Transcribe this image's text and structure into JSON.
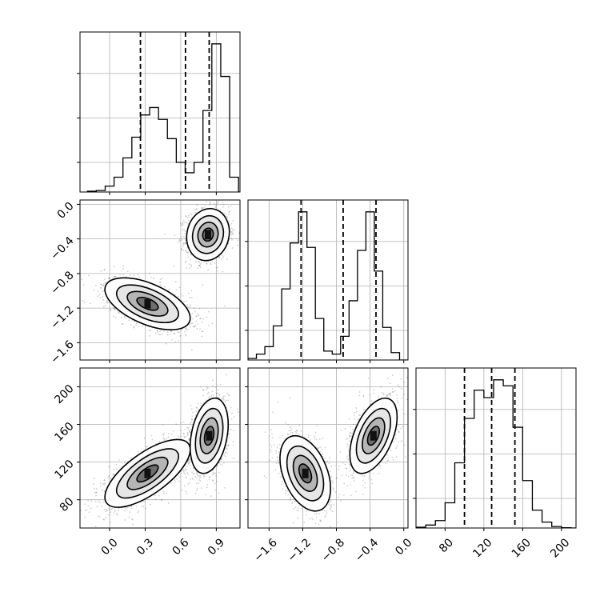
{
  "chart_data": {
    "type": "corner",
    "grid": true,
    "panels": [
      {
        "id": "hist-0",
        "type": "histogram",
        "row": 0,
        "col": 0,
        "xlim": [
          -0.25,
          1.1
        ],
        "x_ticks": [
          0.0,
          0.3,
          0.6,
          0.9
        ],
        "bins": [
          {
            "x": -0.15,
            "y": 0.005
          },
          {
            "x": -0.075,
            "y": 0.01
          },
          {
            "x": 0.0,
            "y": 0.04
          },
          {
            "x": 0.075,
            "y": 0.1
          },
          {
            "x": 0.15,
            "y": 0.23
          },
          {
            "x": 0.225,
            "y": 0.37
          },
          {
            "x": 0.3,
            "y": 0.52
          },
          {
            "x": 0.375,
            "y": 0.57
          },
          {
            "x": 0.45,
            "y": 0.49
          },
          {
            "x": 0.525,
            "y": 0.36
          },
          {
            "x": 0.6,
            "y": 0.2
          },
          {
            "x": 0.675,
            "y": 0.13
          },
          {
            "x": 0.75,
            "y": 0.2
          },
          {
            "x": 0.825,
            "y": 0.55
          },
          {
            "x": 0.9,
            "y": 1.0
          },
          {
            "x": 0.975,
            "y": 0.78
          },
          {
            "x": 1.05,
            "y": 0.1
          }
        ],
        "quantiles": [
          0.26,
          0.64,
          0.84
        ]
      },
      {
        "id": "hist-1",
        "type": "histogram",
        "row": 1,
        "col": 1,
        "xlim": [
          -1.85,
          0.05
        ],
        "x_ticks": [
          -1.6,
          -1.2,
          -0.8,
          -0.4,
          0.0
        ],
        "bins": [
          {
            "x": -1.8,
            "y": 0.01
          },
          {
            "x": -1.7,
            "y": 0.04
          },
          {
            "x": -1.6,
            "y": 0.09
          },
          {
            "x": -1.5,
            "y": 0.23
          },
          {
            "x": -1.4,
            "y": 0.48
          },
          {
            "x": -1.3,
            "y": 0.79
          },
          {
            "x": -1.2,
            "y": 1.0
          },
          {
            "x": -1.1,
            "y": 0.76
          },
          {
            "x": -1.0,
            "y": 0.28
          },
          {
            "x": -0.9,
            "y": 0.06
          },
          {
            "x": -0.8,
            "y": 0.04
          },
          {
            "x": -0.7,
            "y": 0.16
          },
          {
            "x": -0.6,
            "y": 0.4
          },
          {
            "x": -0.5,
            "y": 0.74
          },
          {
            "x": -0.4,
            "y": 1.0
          },
          {
            "x": -0.3,
            "y": 0.6
          },
          {
            "x": -0.2,
            "y": 0.22
          },
          {
            "x": -0.1,
            "y": 0.05
          }
        ],
        "quantiles": [
          -1.22,
          -0.72,
          -0.33
        ]
      },
      {
        "id": "hist-2",
        "type": "histogram",
        "row": 2,
        "col": 2,
        "xlim": [
          50,
          215
        ],
        "x_ticks": [
          80,
          120,
          160,
          200
        ],
        "bins": [
          {
            "x": 55,
            "y": 0.005
          },
          {
            "x": 65,
            "y": 0.02
          },
          {
            "x": 75,
            "y": 0.05
          },
          {
            "x": 85,
            "y": 0.17
          },
          {
            "x": 95,
            "y": 0.44
          },
          {
            "x": 105,
            "y": 0.74
          },
          {
            "x": 115,
            "y": 0.93
          },
          {
            "x": 125,
            "y": 0.88
          },
          {
            "x": 135,
            "y": 1.0
          },
          {
            "x": 145,
            "y": 0.96
          },
          {
            "x": 155,
            "y": 0.68
          },
          {
            "x": 165,
            "y": 0.32
          },
          {
            "x": 175,
            "y": 0.12
          },
          {
            "x": 185,
            "y": 0.04
          },
          {
            "x": 195,
            "y": 0.01
          },
          {
            "x": 205,
            "y": 0.002
          }
        ],
        "quantiles": [
          100,
          128,
          152
        ]
      },
      {
        "id": "joint-1-0",
        "type": "scatter_contour",
        "row": 1,
        "col": 0,
        "xlim": [
          -0.25,
          1.1
        ],
        "ylim": [
          -1.8,
          0.05
        ],
        "x_ticks": [
          0.0,
          0.3,
          0.6,
          0.9
        ],
        "y_ticks": [
          0.0,
          -0.4,
          -0.8,
          -1.2,
          -1.6
        ],
        "clusters": [
          {
            "center": [
              0.83,
              -0.35
            ],
            "sd": [
              0.09,
              0.15
            ],
            "rho": 0.1
          },
          {
            "center": [
              0.32,
              -1.15
            ],
            "sd": [
              0.18,
              0.15
            ],
            "rho": -0.55
          }
        ]
      },
      {
        "id": "joint-2-0",
        "type": "scatter_contour",
        "row": 2,
        "col": 0,
        "xlim": [
          -0.25,
          1.1
        ],
        "ylim": [
          50,
          220
        ],
        "x_ticks": [
          0.0,
          0.3,
          0.6,
          0.9
        ],
        "y_ticks": [
          80,
          120,
          160,
          200
        ],
        "clusters": [
          {
            "center": [
              0.84,
              148
            ],
            "sd": [
              0.08,
              20
            ],
            "rho": 0.3
          },
          {
            "center": [
              0.32,
              108
            ],
            "sd": [
              0.18,
              18
            ],
            "rho": 0.7
          }
        ]
      },
      {
        "id": "joint-2-1",
        "type": "scatter_contour",
        "row": 2,
        "col": 1,
        "xlim": [
          -1.85,
          0.05
        ],
        "ylim": [
          50,
          220
        ],
        "x_ticks": [
          -1.6,
          -1.2,
          -0.8,
          -0.4,
          0.0
        ],
        "y_ticks": [
          80,
          120,
          160,
          200
        ],
        "clusters": [
          {
            "center": [
              -0.36,
              148
            ],
            "sd": [
              0.14,
              20
            ],
            "rho": 0.5
          },
          {
            "center": [
              -1.17,
              108
            ],
            "sd": [
              0.15,
              20
            ],
            "rho": -0.4
          }
        ]
      }
    ],
    "tick_labels": {
      "x_col0": [
        "0.0",
        "0.3",
        "0.6",
        "0.9"
      ],
      "x_col1": [
        "−1.6",
        "−1.2",
        "−0.8",
        "−0.4",
        "0.0"
      ],
      "x_col2": [
        "80",
        "120",
        "160",
        "200"
      ],
      "y_row1": [
        "0.0",
        "−0.4",
        "−0.8",
        "−1.2",
        "−1.6"
      ],
      "y_row2": [
        "80",
        "120",
        "160",
        "200"
      ]
    },
    "colors": {
      "line": "#000000",
      "grid": "#b0b0b0",
      "points": "#555555"
    }
  }
}
